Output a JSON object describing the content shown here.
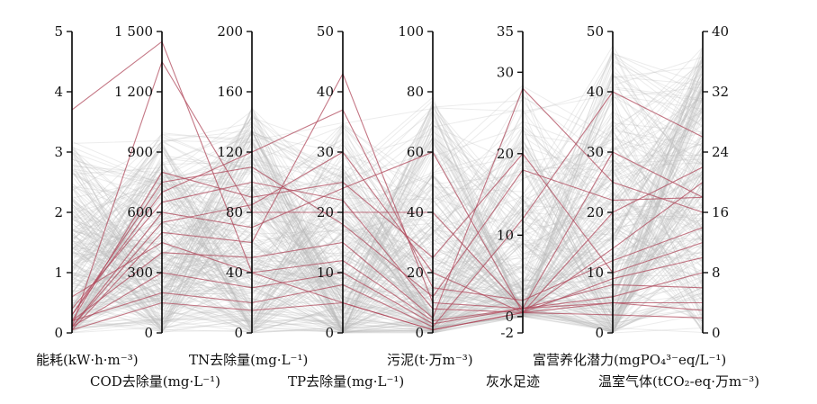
{
  "chart_data": {
    "type": "parallel-coordinates",
    "title": "",
    "axes": [
      {
        "key": "energy",
        "label": "能耗(kW·h·m⁻³)",
        "min": 0,
        "max": 5,
        "ticks": [
          "0",
          "1",
          "2",
          "3",
          "4",
          "5"
        ],
        "side": "left"
      },
      {
        "key": "cod",
        "label": "COD去除量(mg·L⁻¹)",
        "min": 0,
        "max": 1500,
        "ticks": [
          "0",
          "300",
          "600",
          "900",
          "1 200",
          "1 500"
        ],
        "side": "left"
      },
      {
        "key": "tn",
        "label": "TN去除量(mg·L⁻¹)",
        "min": 0,
        "max": 200,
        "ticks": [
          "0",
          "40",
          "80",
          "120",
          "160",
          "200"
        ],
        "side": "left"
      },
      {
        "key": "tp",
        "label": "TP去除量(mg·L⁻¹)",
        "min": 0,
        "max": 50,
        "ticks": [
          "0",
          "10",
          "20",
          "30",
          "40",
          "50"
        ],
        "side": "left"
      },
      {
        "key": "sludge",
        "label": "污泥(t·万m⁻³)",
        "min": 0,
        "max": 100,
        "ticks": [
          "0",
          "20",
          "40",
          "60",
          "80",
          "100"
        ],
        "side": "left"
      },
      {
        "key": "greywater",
        "label": "灰水足迹",
        "min": -2,
        "max": 35,
        "ticks": [
          "-2",
          "0",
          "10",
          "20",
          "30",
          "35"
        ],
        "tick_values": [
          -2,
          0,
          10,
          20,
          30,
          35
        ],
        "side": "left"
      },
      {
        "key": "eutro",
        "label": "富营养化潜力(mgPO₄³⁻eq/L⁻¹)",
        "min": 0,
        "max": 50,
        "ticks": [
          "0",
          "10",
          "20",
          "30",
          "40",
          "50"
        ],
        "side": "left"
      },
      {
        "key": "ghg",
        "label": "温室气体(tCO₂-eq·万m⁻³)",
        "min": 0,
        "max": 40,
        "ticks": [
          "0",
          "8",
          "16",
          "24",
          "32",
          "40"
        ],
        "side": "right"
      }
    ],
    "series_colors": {
      "background": "#b9b9b9",
      "highlight": "#b04a5c"
    },
    "highlight_lines": [
      [
        3.7,
        1450,
        40,
        5,
        1,
        0.5,
        5,
        3
      ],
      [
        0.1,
        1350,
        80,
        20,
        40,
        1,
        30,
        18
      ],
      [
        0.2,
        800,
        90,
        25,
        25,
        20,
        10,
        12
      ],
      [
        0.05,
        500,
        60,
        43,
        10,
        1,
        8,
        6
      ],
      [
        0.3,
        700,
        120,
        37,
        15,
        2,
        12,
        14
      ],
      [
        0.1,
        600,
        70,
        24,
        60,
        0.5,
        20,
        22
      ],
      [
        0.2,
        400,
        50,
        15,
        5,
        28,
        25,
        16
      ],
      [
        0.1,
        300,
        30,
        10,
        3,
        1,
        5,
        4
      ],
      [
        0.4,
        650,
        100,
        22,
        8,
        0.5,
        14,
        20
      ],
      [
        0.2,
        200,
        20,
        8,
        2,
        12,
        40,
        26
      ],
      [
        0.1,
        550,
        85,
        30,
        20,
        0.5,
        9,
        10
      ],
      [
        0.6,
        450,
        40,
        12,
        4,
        1,
        6,
        8
      ],
      [
        0.3,
        750,
        110,
        18,
        12,
        18,
        22,
        18
      ],
      [
        0.05,
        150,
        15,
        5,
        1,
        0.5,
        3,
        2
      ]
    ]
  }
}
